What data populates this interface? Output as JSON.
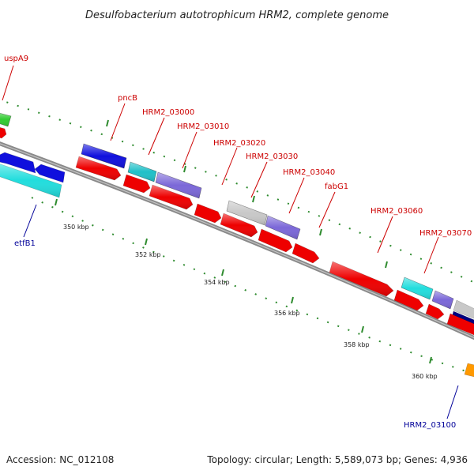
{
  "title": "Desulfobacterium autotrophicum HRM2, complete genome",
  "footer": {
    "accession": "Accession: NC_012108",
    "topology": "Topology: circular; Length: 5,589,073 bp; Genes: 4,936"
  },
  "colors": {
    "forward_label": "#cc0000",
    "reverse_label": "#000099",
    "backbone": "#8a8a8a",
    "tick": "#2e8b2e",
    "red_gene": "#ee0000",
    "blue_gene": "#1010dd",
    "cyan_gene": "#22dddd",
    "teal_gene": "#20c0c8",
    "purple_gene": "#7b68d8",
    "gray_gene": "#c8c8c8",
    "green_gene": "#33cc33",
    "navy_gene": "#000080",
    "orange_gene": "#ff9900"
  },
  "ticks": [
    {
      "label": "350 kbp"
    },
    {
      "label": "352 kbp"
    },
    {
      "label": "354 kbp"
    },
    {
      "label": "356 kbp"
    },
    {
      "label": "358 kbp"
    },
    {
      "label": "360 kbp"
    }
  ],
  "genes": [
    {
      "id": "uspA9",
      "label": "uspA9",
      "strand": "forward"
    },
    {
      "id": "pncB",
      "label": "pncB",
      "strand": "forward"
    },
    {
      "id": "HRM2_03000",
      "label": "HRM2_03000",
      "strand": "forward"
    },
    {
      "id": "HRM2_03010",
      "label": "HRM2_03010",
      "strand": "forward"
    },
    {
      "id": "HRM2_03020",
      "label": "HRM2_03020",
      "strand": "forward"
    },
    {
      "id": "HRM2_03030",
      "label": "HRM2_03030",
      "strand": "forward"
    },
    {
      "id": "HRM2_03040",
      "label": "HRM2_03040",
      "strand": "forward"
    },
    {
      "id": "fabG1",
      "label": "fabG1",
      "strand": "forward"
    },
    {
      "id": "HRM2_03060",
      "label": "HRM2_03060",
      "strand": "forward"
    },
    {
      "id": "HRM2_03070",
      "label": "HRM2_03070",
      "strand": "forward"
    },
    {
      "id": "etfB1",
      "label": "etfB1",
      "strand": "reverse"
    },
    {
      "id": "HRM2_03100",
      "label": "HRM2_03100",
      "strand": "reverse"
    }
  ]
}
